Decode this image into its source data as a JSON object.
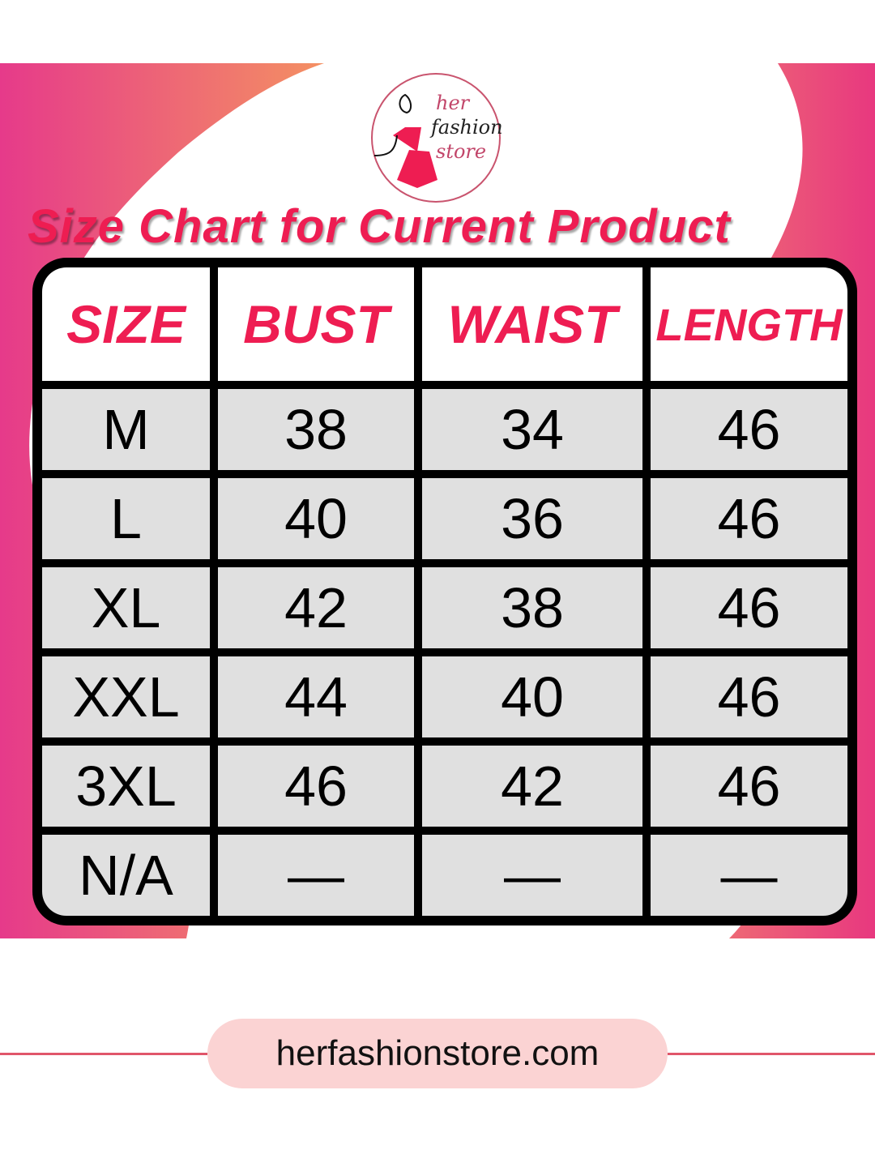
{
  "brand": {
    "logo_text": [
      "her",
      "fashion",
      "store"
    ],
    "accent_color": "#ee1d52"
  },
  "title": "Size Chart for Current Product",
  "table": {
    "headers": [
      "SIZE",
      "BUST",
      "WAIST",
      "LENGTH"
    ],
    "rows": [
      [
        "M",
        "38",
        "34",
        "46"
      ],
      [
        "L",
        "40",
        "36",
        "46"
      ],
      [
        "XL",
        "42",
        "38",
        "46"
      ],
      [
        "XXL",
        "44",
        "40",
        "46"
      ],
      [
        "3XL",
        "46",
        "42",
        "46"
      ],
      [
        "N/A",
        "—",
        "—",
        "—"
      ]
    ]
  },
  "footer": {
    "website": "herfashionstore.com"
  }
}
